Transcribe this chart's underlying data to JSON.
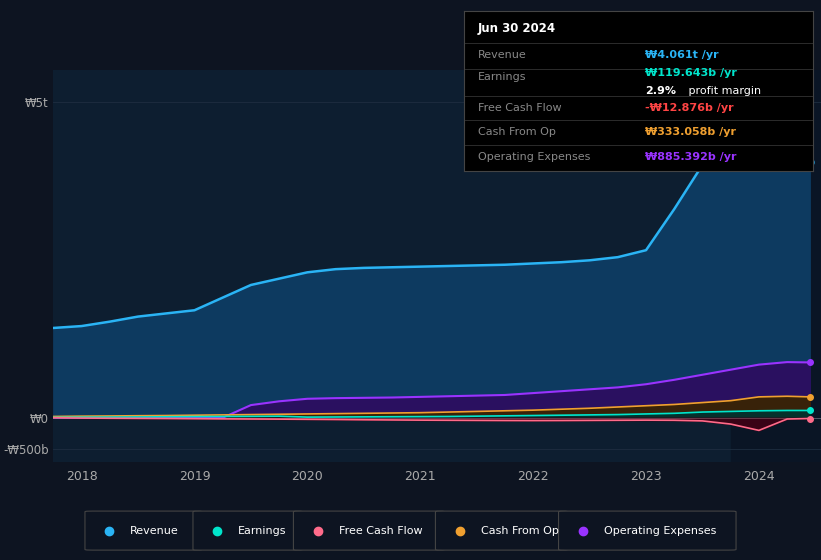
{
  "bg_color": "#0d1421",
  "plot_bg_color": "#0d1e30",
  "grid_color": "#1e2d40",
  "highlight_bg": "#0a1525",
  "x_years": [
    2017.75,
    2018.0,
    2018.25,
    2018.5,
    2018.75,
    2019.0,
    2019.25,
    2019.5,
    2019.75,
    2020.0,
    2020.25,
    2020.5,
    2020.75,
    2021.0,
    2021.25,
    2021.5,
    2021.75,
    2022.0,
    2022.25,
    2022.5,
    2022.75,
    2023.0,
    2023.25,
    2023.5,
    2023.75,
    2024.0,
    2024.25,
    2024.45
  ],
  "revenue": [
    1420,
    1450,
    1520,
    1600,
    1650,
    1700,
    1900,
    2100,
    2200,
    2300,
    2350,
    2370,
    2380,
    2390,
    2400,
    2410,
    2420,
    2440,
    2460,
    2490,
    2540,
    2650,
    3300,
    4000,
    4500,
    4800,
    4150,
    4050
  ],
  "earnings": [
    5,
    8,
    10,
    12,
    15,
    18,
    20,
    22,
    25,
    10,
    12,
    14,
    16,
    18,
    20,
    25,
    30,
    35,
    40,
    45,
    50,
    60,
    70,
    90,
    100,
    110,
    115,
    115
  ],
  "free_cash_flow": [
    0,
    -5,
    -8,
    -10,
    -12,
    -15,
    -18,
    -20,
    -22,
    -25,
    -28,
    -32,
    -35,
    -38,
    -40,
    -42,
    -44,
    -45,
    -44,
    -42,
    -40,
    -38,
    -40,
    -50,
    -100,
    -200,
    -20,
    -12
  ],
  "cash_from_op": [
    20,
    25,
    28,
    32,
    35,
    40,
    45,
    50,
    55,
    60,
    65,
    70,
    75,
    80,
    90,
    100,
    110,
    120,
    135,
    150,
    170,
    190,
    210,
    240,
    270,
    330,
    340,
    330
  ],
  "operating_expenses": [
    0,
    0,
    0,
    0,
    0,
    0,
    0,
    200,
    260,
    300,
    310,
    315,
    320,
    330,
    340,
    350,
    360,
    390,
    420,
    450,
    480,
    530,
    600,
    680,
    760,
    840,
    880,
    875
  ],
  "revenue_color": "#2ab4f5",
  "earnings_color": "#00e5cc",
  "fcf_color": "#ff6b8a",
  "cashop_color": "#f0a030",
  "opex_color": "#9933ff",
  "revenue_fill": "#0d3a60",
  "opex_fill": "#2a1060",
  "cashop_fill": "#3a2500",
  "earnings_fill": "#003330",
  "fcf_fill": "#400015",
  "ylim_min": -700,
  "ylim_max": 5500,
  "highlight_start": 2023.75,
  "x_min": 2017.75,
  "x_max": 2024.55,
  "xlabel_ticks": [
    2018,
    2019,
    2020,
    2021,
    2022,
    2023,
    2024
  ],
  "info_box": {
    "date": "Jun 30 2024",
    "revenue_label": "Revenue",
    "revenue_value": "₩4.061t /yr",
    "revenue_color": "#2ab4f5",
    "earnings_label": "Earnings",
    "earnings_value": "₩119.643b /yr",
    "earnings_color": "#00e5cc",
    "profit_margin_pct": "2.9%",
    "profit_margin_text": " profit margin",
    "fcf_label": "Free Cash Flow",
    "fcf_value": "-₩12.876b /yr",
    "fcf_color": "#ff4444",
    "cashop_label": "Cash From Op",
    "cashop_value": "₩333.058b /yr",
    "cashop_color": "#f0a030",
    "opex_label": "Operating Expenses",
    "opex_value": "₩885.392b /yr",
    "opex_color": "#9933ff"
  },
  "legend_items": [
    "Revenue",
    "Earnings",
    "Free Cash Flow",
    "Cash From Op",
    "Operating Expenses"
  ],
  "legend_colors": [
    "#2ab4f5",
    "#00e5cc",
    "#ff6b8a",
    "#f0a030",
    "#9933ff"
  ]
}
